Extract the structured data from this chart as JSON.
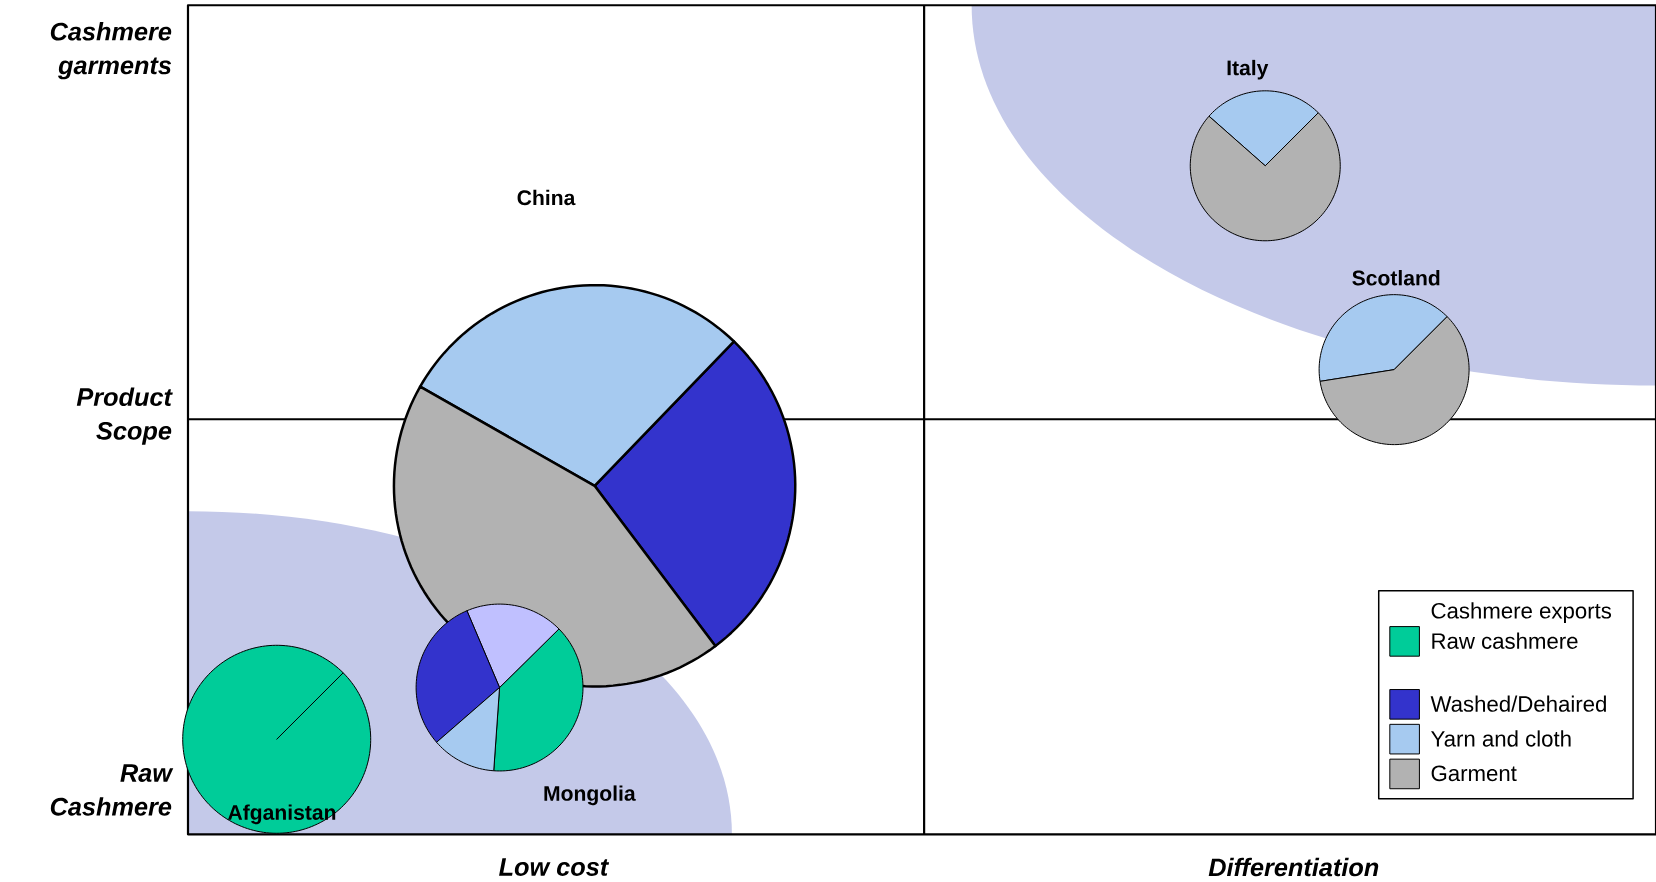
{
  "chart_data": [
    {
      "type": "other",
      "annotations": [
        "Cashmere garments",
        "Product Scope",
        "Raw Cashmere",
        "Low cost",
        "Differentiation"
      ]
    },
    {
      "type": "pie",
      "title": "China",
      "legend_title": "Cashmere exports",
      "legend": "bottom right",
      "categories": [
        "Raw cashmere",
        null,
        "Washed/Dehaired",
        "Yarn and cloth",
        "Garment"
      ],
      "values": [
        0,
        0,
        27.5,
        29,
        43.5
      ],
      "colors": [
        "#00cc99",
        "#c0c0ff",
        "#3333cc",
        "#a6caf0",
        "#b2b2b2"
      ]
    },
    {
      "type": "pie",
      "title": "Italy",
      "values": [
        0,
        0,
        0,
        26,
        74
      ],
      "colors": [
        "#00cc99",
        "#c0c0ff",
        "#3333cc",
        "#a6caf0",
        "#b2b2b2"
      ]
    },
    {
      "type": "pie",
      "title": "Scotland",
      "values": [
        0,
        0,
        0,
        40,
        60
      ],
      "colors": [
        "#00cc99",
        "#c0c0ff",
        "#3333cc",
        "#a6caf0",
        "#b2b2b2"
      ]
    },
    {
      "type": "pie",
      "title": "Mongolia",
      "values": [
        38.5,
        19,
        30,
        12.5,
        0
      ],
      "colors": [
        "#00cc99",
        "#c0c0ff",
        "#3333cc",
        "#a6caf0",
        "#b2b2b2"
      ]
    },
    {
      "type": "pie",
      "title": "Afganistan",
      "values": [
        100,
        0,
        0,
        0,
        0
      ],
      "colors": [
        "#00cc99",
        "#c0c0ff",
        "#3333cc",
        "#a6caf0",
        "#b2b2b2"
      ]
    }
  ]
}
